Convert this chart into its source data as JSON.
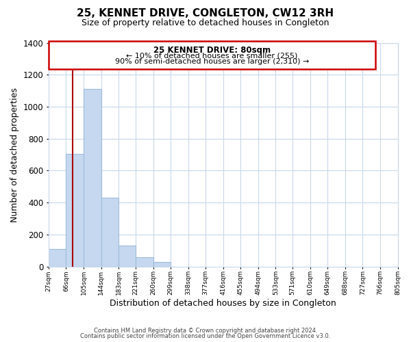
{
  "title": "25, KENNET DRIVE, CONGLETON, CW12 3RH",
  "subtitle": "Size of property relative to detached houses in Congleton",
  "xlabel": "Distribution of detached houses by size in Congleton",
  "ylabel": "Number of detached properties",
  "bar_edges": [
    27,
    66,
    105,
    144,
    183,
    221,
    260,
    299,
    338,
    377,
    416,
    455,
    494,
    533,
    571,
    610,
    649,
    688,
    727,
    766,
    805
  ],
  "bar_heights": [
    110,
    705,
    1110,
    430,
    130,
    57,
    30,
    0,
    0,
    0,
    0,
    0,
    0,
    0,
    0,
    0,
    0,
    0,
    0,
    0
  ],
  "bar_color": "#c5d8f0",
  "bar_edge_color": "#a0bcd8",
  "property_line_x": 80,
  "property_line_color": "#aa0000",
  "annotation_title": "25 KENNET DRIVE: 80sqm",
  "annotation_line1": "← 10% of detached houses are smaller (255)",
  "annotation_line2": "90% of semi-detached houses are larger (2,310) →",
  "annotation_box_color": "#ffffff",
  "annotation_box_edgecolor": "#cc0000",
  "ylim": [
    0,
    1400
  ],
  "yticks": [
    0,
    200,
    400,
    600,
    800,
    1000,
    1200,
    1400
  ],
  "tick_labels": [
    "27sqm",
    "66sqm",
    "105sqm",
    "144sqm",
    "183sqm",
    "221sqm",
    "260sqm",
    "299sqm",
    "338sqm",
    "377sqm",
    "416sqm",
    "455sqm",
    "494sqm",
    "533sqm",
    "571sqm",
    "610sqm",
    "649sqm",
    "688sqm",
    "727sqm",
    "766sqm",
    "805sqm"
  ],
  "footer_line1": "Contains HM Land Registry data © Crown copyright and database right 2024.",
  "footer_line2": "Contains public sector information licensed under the Open Government Licence v3.0.",
  "background_color": "#ffffff",
  "grid_color": "#c8d8e8"
}
